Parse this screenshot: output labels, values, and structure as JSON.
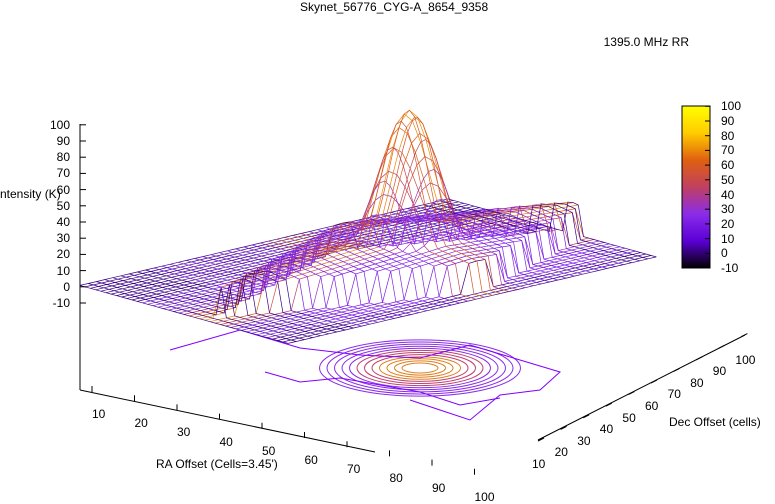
{
  "chart_data": {
    "type": "surface",
    "title": "Skynet_56776_CYG-A_8654_9358",
    "series": [
      {
        "name": "1395.0 MHz RR"
      }
    ],
    "xlabel": "RA Offset (Cells=3.45')",
    "ylabel": "Dec Offset (cells)",
    "zlabel": "ntensity (K)",
    "xlim": [
      0,
      100
    ],
    "ylim": [
      10,
      100
    ],
    "zlim": [
      -10,
      100
    ],
    "x_ticks": [
      "10",
      "20",
      "30",
      "40",
      "50",
      "60",
      "70",
      "80",
      "90",
      "100"
    ],
    "y_ticks": [
      "10",
      "20",
      "30",
      "40",
      "50",
      "60",
      "70",
      "80",
      "90",
      "100"
    ],
    "z_ticks": [
      "-10",
      "0",
      "10",
      "20",
      "30",
      "40",
      "50",
      "60",
      "70",
      "80",
      "90",
      "100"
    ],
    "colorbar_ticks": [
      "-10",
      "0",
      "10",
      "20",
      "30",
      "40",
      "50",
      "60",
      "70",
      "80",
      "90",
      "100"
    ],
    "colorbar_range": [
      -10,
      100
    ],
    "peak": {
      "x": 50,
      "y": 50,
      "z": 100
    },
    "background_level": 20,
    "contours": true,
    "colormap": [
      "#000000",
      "#5a00d6",
      "#8a2ce8",
      "#c04060",
      "#e06010",
      "#ffcc00",
      "#ffff00"
    ]
  },
  "colors": {
    "line": "#8000ff",
    "legend_gradient": [
      "#8000ff",
      "#ffc000"
    ]
  }
}
